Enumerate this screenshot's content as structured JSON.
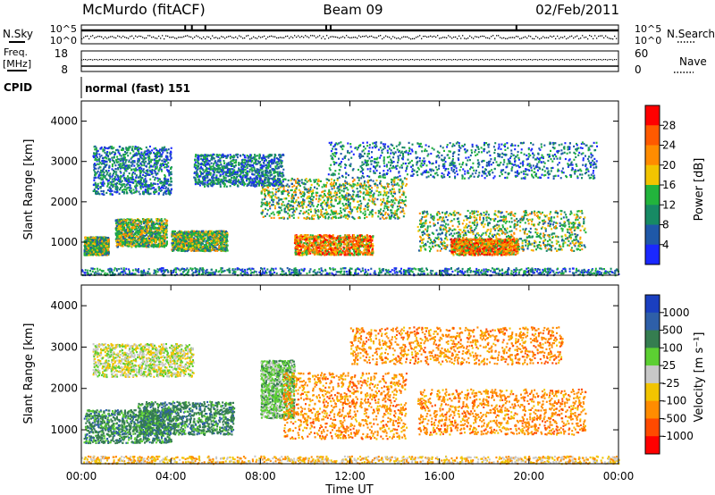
{
  "header": {
    "station": "McMurdo (fitACF)",
    "beam": "Beam 09",
    "date": "02/Feb/2011"
  },
  "param_panels": {
    "nsky": {
      "label": "N.Sky",
      "ticks": [
        "10^5",
        "10^0"
      ],
      "right_label": "N.Search",
      "right_ticks": [
        "10^5",
        "10^0"
      ]
    },
    "freq": {
      "label_line1": "Freq.",
      "label_line2": "[MHz]",
      "ticks": [
        "18",
        "8"
      ],
      "right_label": "Nave",
      "right_ticks": [
        "60",
        "0"
      ]
    },
    "cpid": {
      "label": "CPID",
      "value": "normal (fast) 151"
    }
  },
  "chart_data": [
    {
      "type": "heatmap",
      "name": "power",
      "ylabel": "Slant Range [km]",
      "xlabel": "",
      "xlim_hours": [
        0,
        24
      ],
      "ylim_km": [
        180,
        4500
      ],
      "yticks": [
        "4000",
        "3000",
        "2000",
        "1000"
      ],
      "xticks": [
        "00:00",
        "04:00",
        "08:00",
        "12:00",
        "16:00",
        "20:00",
        "00:00"
      ],
      "colorbar": {
        "label": "Power [dB]",
        "ticks": [
          "28",
          "24",
          "20",
          "16",
          "12",
          "8",
          "4"
        ],
        "colors": [
          "#ff0000",
          "#ff5a00",
          "#ff8c00",
          "#f2c400",
          "#22b43c",
          "#178a64",
          "#1f58a8",
          "#1a28ff"
        ]
      },
      "scatter_regions": [
        {
          "t": [
            0.1,
            1.2
          ],
          "r": [
            700,
            1150
          ],
          "level": "mid"
        },
        {
          "t": [
            1.5,
            3.8
          ],
          "r": [
            900,
            1600
          ],
          "level": "mid"
        },
        {
          "t": [
            4.0,
            6.5
          ],
          "r": [
            800,
            1300
          ],
          "level": "mid"
        },
        {
          "t": [
            8.0,
            14.5
          ],
          "r": [
            1600,
            2600
          ],
          "level": "mid"
        },
        {
          "t": [
            9.5,
            13.0
          ],
          "r": [
            700,
            1200
          ],
          "level": "high"
        },
        {
          "t": [
            15.0,
            22.5
          ],
          "r": [
            800,
            1800
          ],
          "level": "mid"
        },
        {
          "t": [
            16.5,
            19.5
          ],
          "r": [
            700,
            1100
          ],
          "level": "high"
        },
        {
          "t": [
            0.5,
            4.0
          ],
          "r": [
            2200,
            3400
          ],
          "level": "low"
        },
        {
          "t": [
            5.0,
            9.0
          ],
          "r": [
            2400,
            3200
          ],
          "level": "low"
        },
        {
          "t": [
            11.0,
            23.0
          ],
          "r": [
            2600,
            3500
          ],
          "level": "low"
        },
        {
          "t": [
            0.0,
            24.0
          ],
          "r": [
            200,
            380
          ],
          "level": "ground"
        }
      ]
    },
    {
      "type": "heatmap",
      "name": "velocity",
      "ylabel": "Slant Range [km]",
      "xlabel": "Time UT",
      "xlim_hours": [
        0,
        24
      ],
      "ylim_km": [
        180,
        4500
      ],
      "yticks": [
        "4000",
        "3000",
        "2000",
        "1000"
      ],
      "xticks": [
        "00:00",
        "04:00",
        "08:00",
        "12:00",
        "16:00",
        "20:00",
        "00:00"
      ],
      "colorbar": {
        "label": "Velocity [m s⁻¹]",
        "ticks": [
          "1000",
          "500",
          "100",
          "25",
          "-25",
          "-100",
          "-500",
          "-1000"
        ],
        "colors": [
          "#1a3fc0",
          "#2e5fa8",
          "#357d50",
          "#5ccf32",
          "#c8c8c8",
          "#f2c400",
          "#ff8c00",
          "#ff4a00",
          "#ff0000"
        ]
      },
      "scatter_regions": [
        {
          "t": [
            0.1,
            4.0
          ],
          "r": [
            700,
            1500
          ],
          "level": "teal"
        },
        {
          "t": [
            2.5,
            6.8
          ],
          "r": [
            900,
            1700
          ],
          "level": "teal"
        },
        {
          "t": [
            8.0,
            9.5
          ],
          "r": [
            1300,
            2700
          ],
          "level": "green"
        },
        {
          "t": [
            9.0,
            14.5
          ],
          "r": [
            800,
            2400
          ],
          "level": "orange"
        },
        {
          "t": [
            15.0,
            22.5
          ],
          "r": [
            900,
            2000
          ],
          "level": "orange"
        },
        {
          "t": [
            12.0,
            21.5
          ],
          "r": [
            2600,
            3500
          ],
          "level": "orange"
        },
        {
          "t": [
            0.5,
            5.0
          ],
          "r": [
            2300,
            3100
          ],
          "level": "gray"
        },
        {
          "t": [
            0.0,
            24.0
          ],
          "r": [
            200,
            380
          ],
          "level": "ground"
        }
      ]
    }
  ]
}
